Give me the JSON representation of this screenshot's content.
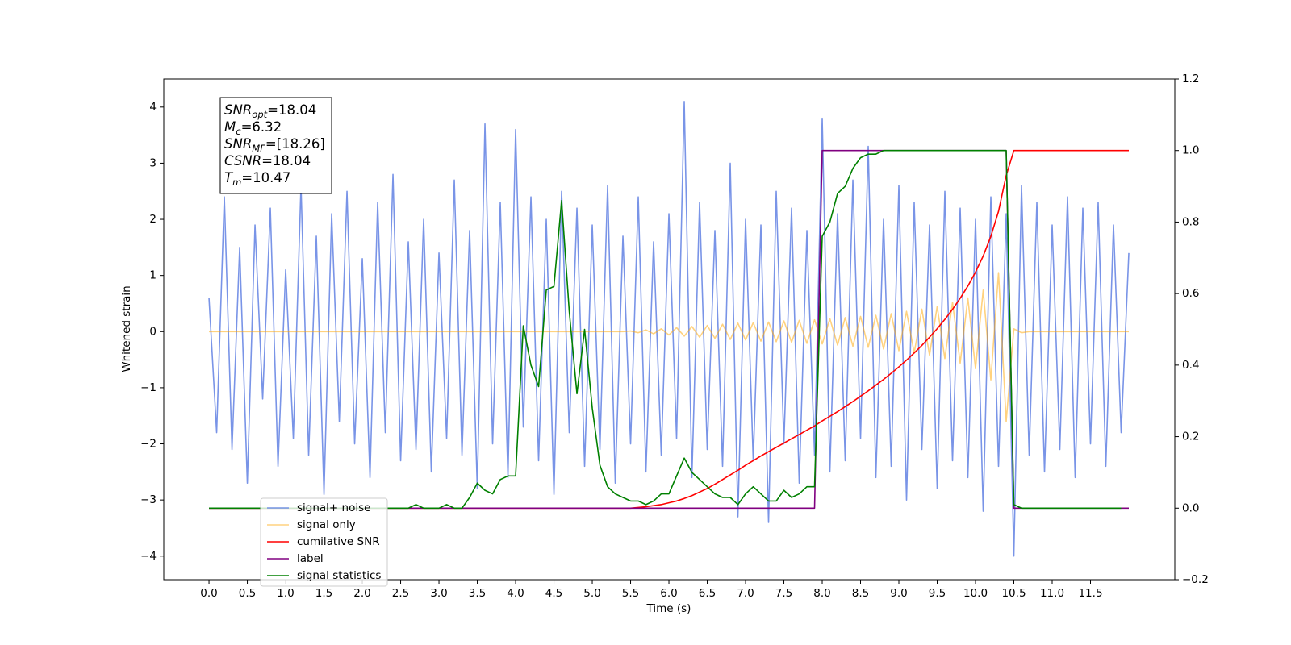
{
  "chart_data": {
    "type": "line",
    "xlabel": "Time (s)",
    "ylabel": "Whitened strain",
    "x": [
      0.0,
      0.1,
      0.2,
      0.3,
      0.4,
      0.5,
      0.6,
      0.7,
      0.8,
      0.9,
      1.0,
      1.1,
      1.2,
      1.3,
      1.4,
      1.5,
      1.6,
      1.7,
      1.8,
      1.9,
      2.0,
      2.1,
      2.2,
      2.3,
      2.4,
      2.5,
      2.6,
      2.7,
      2.8,
      2.9,
      3.0,
      3.1,
      3.2,
      3.3,
      3.4,
      3.5,
      3.6,
      3.7,
      3.8,
      3.9,
      4.0,
      4.1,
      4.2,
      4.3,
      4.4,
      4.5,
      4.6,
      4.7,
      4.8,
      4.9,
      5.0,
      5.1,
      5.2,
      5.3,
      5.4,
      5.5,
      5.6,
      5.7,
      5.8,
      5.9,
      6.0,
      6.1,
      6.2,
      6.3,
      6.4,
      6.5,
      6.6,
      6.7,
      6.8,
      6.9,
      7.0,
      7.1,
      7.2,
      7.3,
      7.4,
      7.5,
      7.6,
      7.7,
      7.8,
      7.9,
      8.0,
      8.1,
      8.2,
      8.3,
      8.4,
      8.5,
      8.6,
      8.7,
      8.8,
      8.9,
      9.0,
      9.1,
      9.2,
      9.3,
      9.4,
      9.5,
      9.6,
      9.7,
      9.8,
      9.9,
      10.0,
      10.1,
      10.2,
      10.3,
      10.4,
      10.5,
      10.6,
      10.7,
      10.8,
      10.9,
      11.0,
      11.1,
      11.2,
      11.3,
      11.4,
      11.5,
      11.6,
      11.7,
      11.8,
      11.9,
      12.0
    ],
    "series": [
      {
        "name": "signal+ noise",
        "color": "#6a88e4",
        "opacity": 0.9,
        "values": [
          0.6,
          -1.8,
          2.4,
          -2.1,
          1.5,
          -2.7,
          1.9,
          -1.2,
          2.2,
          -2.4,
          1.1,
          -1.9,
          2.6,
          -2.2,
          1.7,
          -2.9,
          2.1,
          -1.6,
          2.5,
          -2.0,
          1.3,
          -2.6,
          2.3,
          -1.8,
          2.8,
          -2.3,
          1.6,
          -2.1,
          2.0,
          -2.5,
          1.4,
          -1.9,
          2.7,
          -2.2,
          1.8,
          -2.8,
          3.7,
          -2.0,
          2.3,
          -2.6,
          3.6,
          -1.7,
          2.4,
          -2.3,
          2.0,
          -2.9,
          2.5,
          -1.8,
          2.2,
          -2.4,
          1.9,
          -2.1,
          2.6,
          -2.7,
          1.7,
          -2.0,
          2.4,
          -2.5,
          1.6,
          -2.2,
          2.1,
          -1.9,
          4.1,
          -2.6,
          2.3,
          -2.1,
          1.8,
          -2.4,
          3.0,
          -3.3,
          2.0,
          -2.3,
          1.9,
          -3.4,
          2.5,
          -2.0,
          2.2,
          -2.7,
          1.8,
          -2.2,
          3.8,
          -2.5,
          2.1,
          -2.3,
          2.7,
          -1.9,
          3.3,
          -2.6,
          2.0,
          -2.4,
          2.6,
          -3.0,
          2.3,
          -2.1,
          1.9,
          -2.8,
          2.5,
          -2.3,
          2.2,
          -2.6,
          2.0,
          -3.2,
          2.4,
          -2.4,
          2.1,
          -4.0,
          2.6,
          -2.2,
          2.3,
          -2.5,
          1.9,
          -2.1,
          2.4,
          -2.6,
          2.2,
          -2.0,
          2.3,
          -2.4,
          1.9,
          -1.8,
          1.4
        ]
      },
      {
        "name": "signal only",
        "color": "#ffa500",
        "opacity": 0.5,
        "values": [
          0,
          0,
          0,
          0,
          0,
          0,
          0,
          0,
          0,
          0,
          0,
          0,
          0,
          0,
          0,
          0,
          0,
          0,
          0,
          0,
          0,
          0,
          0,
          0,
          0,
          0,
          0,
          0,
          0,
          0,
          0,
          0,
          0,
          0,
          0,
          0,
          0,
          0,
          0,
          0,
          0,
          0,
          0,
          0,
          0,
          0,
          0,
          0,
          0,
          0,
          0,
          0,
          0,
          0,
          0,
          0.01,
          -0.02,
          0.03,
          -0.04,
          0.05,
          -0.06,
          0.07,
          -0.08,
          0.09,
          -0.1,
          0.11,
          -0.12,
          0.13,
          -0.14,
          0.15,
          -0.15,
          0.16,
          -0.17,
          0.17,
          -0.18,
          0.19,
          -0.19,
          0.2,
          -0.21,
          0.21,
          -0.22,
          0.23,
          -0.24,
          0.25,
          -0.26,
          0.27,
          -0.28,
          0.29,
          -0.31,
          0.32,
          -0.34,
          0.36,
          -0.38,
          0.4,
          -0.42,
          0.45,
          -0.48,
          0.52,
          -0.56,
          0.6,
          -0.66,
          0.74,
          -0.86,
          1.05,
          -1.6,
          0.05,
          -0.02,
          0,
          0,
          0,
          0,
          0,
          0,
          0,
          0,
          0,
          0,
          0,
          0,
          0,
          0
        ]
      },
      {
        "name": "cumilative SNR",
        "color": "#ff0000",
        "axis": "y2",
        "values": [
          0,
          0,
          0,
          0,
          0,
          0,
          0,
          0,
          0,
          0,
          0,
          0,
          0,
          0,
          0,
          0,
          0,
          0,
          0,
          0,
          0,
          0,
          0,
          0,
          0,
          0,
          0,
          0,
          0,
          0,
          0,
          0,
          0,
          0,
          0,
          0,
          0,
          0,
          0,
          0,
          0,
          0,
          0,
          0,
          0,
          0,
          0,
          0,
          0,
          0,
          0,
          0,
          0,
          0,
          0,
          0,
          0.002,
          0.004,
          0.007,
          0.01,
          0.015,
          0.02,
          0.027,
          0.035,
          0.045,
          0.055,
          0.067,
          0.08,
          0.093,
          0.106,
          0.12,
          0.133,
          0.146,
          0.158,
          0.17,
          0.182,
          0.194,
          0.206,
          0.218,
          0.23,
          0.244,
          0.257,
          0.27,
          0.284,
          0.298,
          0.313,
          0.328,
          0.344,
          0.36,
          0.377,
          0.395,
          0.414,
          0.434,
          0.455,
          0.478,
          0.502,
          0.528,
          0.556,
          0.587,
          0.621,
          0.66,
          0.705,
          0.76,
          0.83,
          0.93,
          1.0,
          1.0,
          1.0,
          1.0,
          1.0,
          1.0,
          1.0,
          1.0,
          1.0,
          1.0,
          1.0,
          1.0,
          1.0,
          1.0,
          1.0,
          1.0
        ]
      },
      {
        "name": "label",
        "color": "#800080",
        "axis": "y2",
        "values": [
          0,
          0,
          0,
          0,
          0,
          0,
          0,
          0,
          0,
          0,
          0,
          0,
          0,
          0,
          0,
          0,
          0,
          0,
          0,
          0,
          0,
          0,
          0,
          0,
          0,
          0,
          0,
          0,
          0,
          0,
          0,
          0,
          0,
          0,
          0,
          0,
          0,
          0,
          0,
          0,
          0,
          0,
          0,
          0,
          0,
          0,
          0,
          0,
          0,
          0,
          0,
          0,
          0,
          0,
          0,
          0,
          0,
          0,
          0,
          0,
          0,
          0,
          0,
          0,
          0,
          0,
          0,
          0,
          0,
          0,
          0,
          0,
          0,
          0,
          0,
          0,
          0,
          0,
          0,
          0,
          1,
          1,
          1,
          1,
          1,
          1,
          1,
          1,
          1,
          1,
          1,
          1,
          1,
          1,
          1,
          1,
          1,
          1,
          1,
          1,
          1,
          1,
          1,
          1,
          1,
          0,
          0,
          0,
          0,
          0,
          0,
          0,
          0,
          0,
          0,
          0,
          0,
          0,
          0,
          0,
          0
        ]
      },
      {
        "name": "signal statistics",
        "color": "#008000",
        "axis": "y2",
        "values": [
          0,
          0,
          0,
          0,
          0,
          0,
          0,
          0,
          0,
          0,
          0,
          0,
          0,
          0,
          0,
          0,
          0,
          0,
          0,
          0,
          0,
          0,
          0,
          0,
          0,
          0,
          0,
          0.01,
          0,
          0,
          0,
          0.01,
          0,
          0,
          0.03,
          0.07,
          0.05,
          0.04,
          0.08,
          0.09,
          0.09,
          0.51,
          0.4,
          0.34,
          0.61,
          0.62,
          0.86,
          0.55,
          0.32,
          0.5,
          0.28,
          0.12,
          0.06,
          0.04,
          0.03,
          0.02,
          0.02,
          0.01,
          0.02,
          0.04,
          0.04,
          0.09,
          0.14,
          0.1,
          0.08,
          0.06,
          0.04,
          0.03,
          0.03,
          0.01,
          0.04,
          0.06,
          0.04,
          0.02,
          0.02,
          0.05,
          0.03,
          0.04,
          0.06,
          0.06,
          0.76,
          0.8,
          0.88,
          0.9,
          0.95,
          0.98,
          0.99,
          0.99,
          1.0,
          1.0,
          1.0,
          1.0,
          1.0,
          1.0,
          1.0,
          1.0,
          1.0,
          1.0,
          1.0,
          1.0,
          1.0,
          1.0,
          1.0,
          1.0,
          1.0,
          0.01,
          0,
          0,
          0,
          0,
          0,
          0,
          0,
          0,
          0,
          0,
          0,
          0,
          0,
          0,
          null
        ]
      }
    ],
    "xlim": [
      -0.59,
      12.6
    ],
    "ylim": [
      -4.42,
      4.5
    ],
    "y2lim": [
      -0.2,
      1.2
    ],
    "xticks": [
      {
        "value": 0,
        "label": "0.0"
      },
      0.5,
      {
        "value": 1,
        "label": "1.0"
      },
      1.5,
      {
        "value": 2,
        "label": "2.0"
      },
      2.5,
      {
        "value": 3,
        "label": "3.0"
      },
      3.5,
      {
        "value": 4,
        "label": "4.0"
      },
      4.5,
      {
        "value": 5,
        "label": "5.0"
      },
      5.5,
      {
        "value": 6,
        "label": "6.0"
      },
      6.5,
      {
        "value": 7,
        "label": "7.0"
      },
      7.5,
      {
        "value": 8,
        "label": "8.0"
      },
      8.5,
      {
        "value": 9,
        "label": "9.0"
      },
      9.5,
      {
        "value": 10,
        "label": "10.0"
      },
      10.5,
      {
        "value": 11,
        "label": "11.0"
      },
      11.5
    ],
    "yticks": [
      {
        "value": -4,
        "label": "−4"
      },
      {
        "value": -3,
        "label": "−3"
      },
      {
        "value": -2,
        "label": "−2"
      },
      {
        "value": -1,
        "label": "−1"
      },
      0,
      1,
      2,
      3,
      4
    ],
    "y2ticks": [
      {
        "value": -0.2,
        "label": "−0.2"
      },
      {
        "value": 0,
        "label": "0.0"
      },
      0.2,
      0.4,
      0.6,
      0.8,
      {
        "value": 1,
        "label": "1.0"
      },
      1.2
    ],
    "legend_loc": "lower left",
    "textbox": [
      {
        "base": "SNR",
        "sub": "opt",
        "rest": "=18.04"
      },
      {
        "base": "M",
        "sub": "c",
        "rest": "=6.32"
      },
      {
        "base": "SNR",
        "sub": "MF",
        "rest": "=[18.26]"
      },
      {
        "base": "CSNR",
        "rest": "=18.04"
      },
      {
        "base": "T",
        "sub": "m",
        "rest": "=10.47"
      }
    ]
  }
}
